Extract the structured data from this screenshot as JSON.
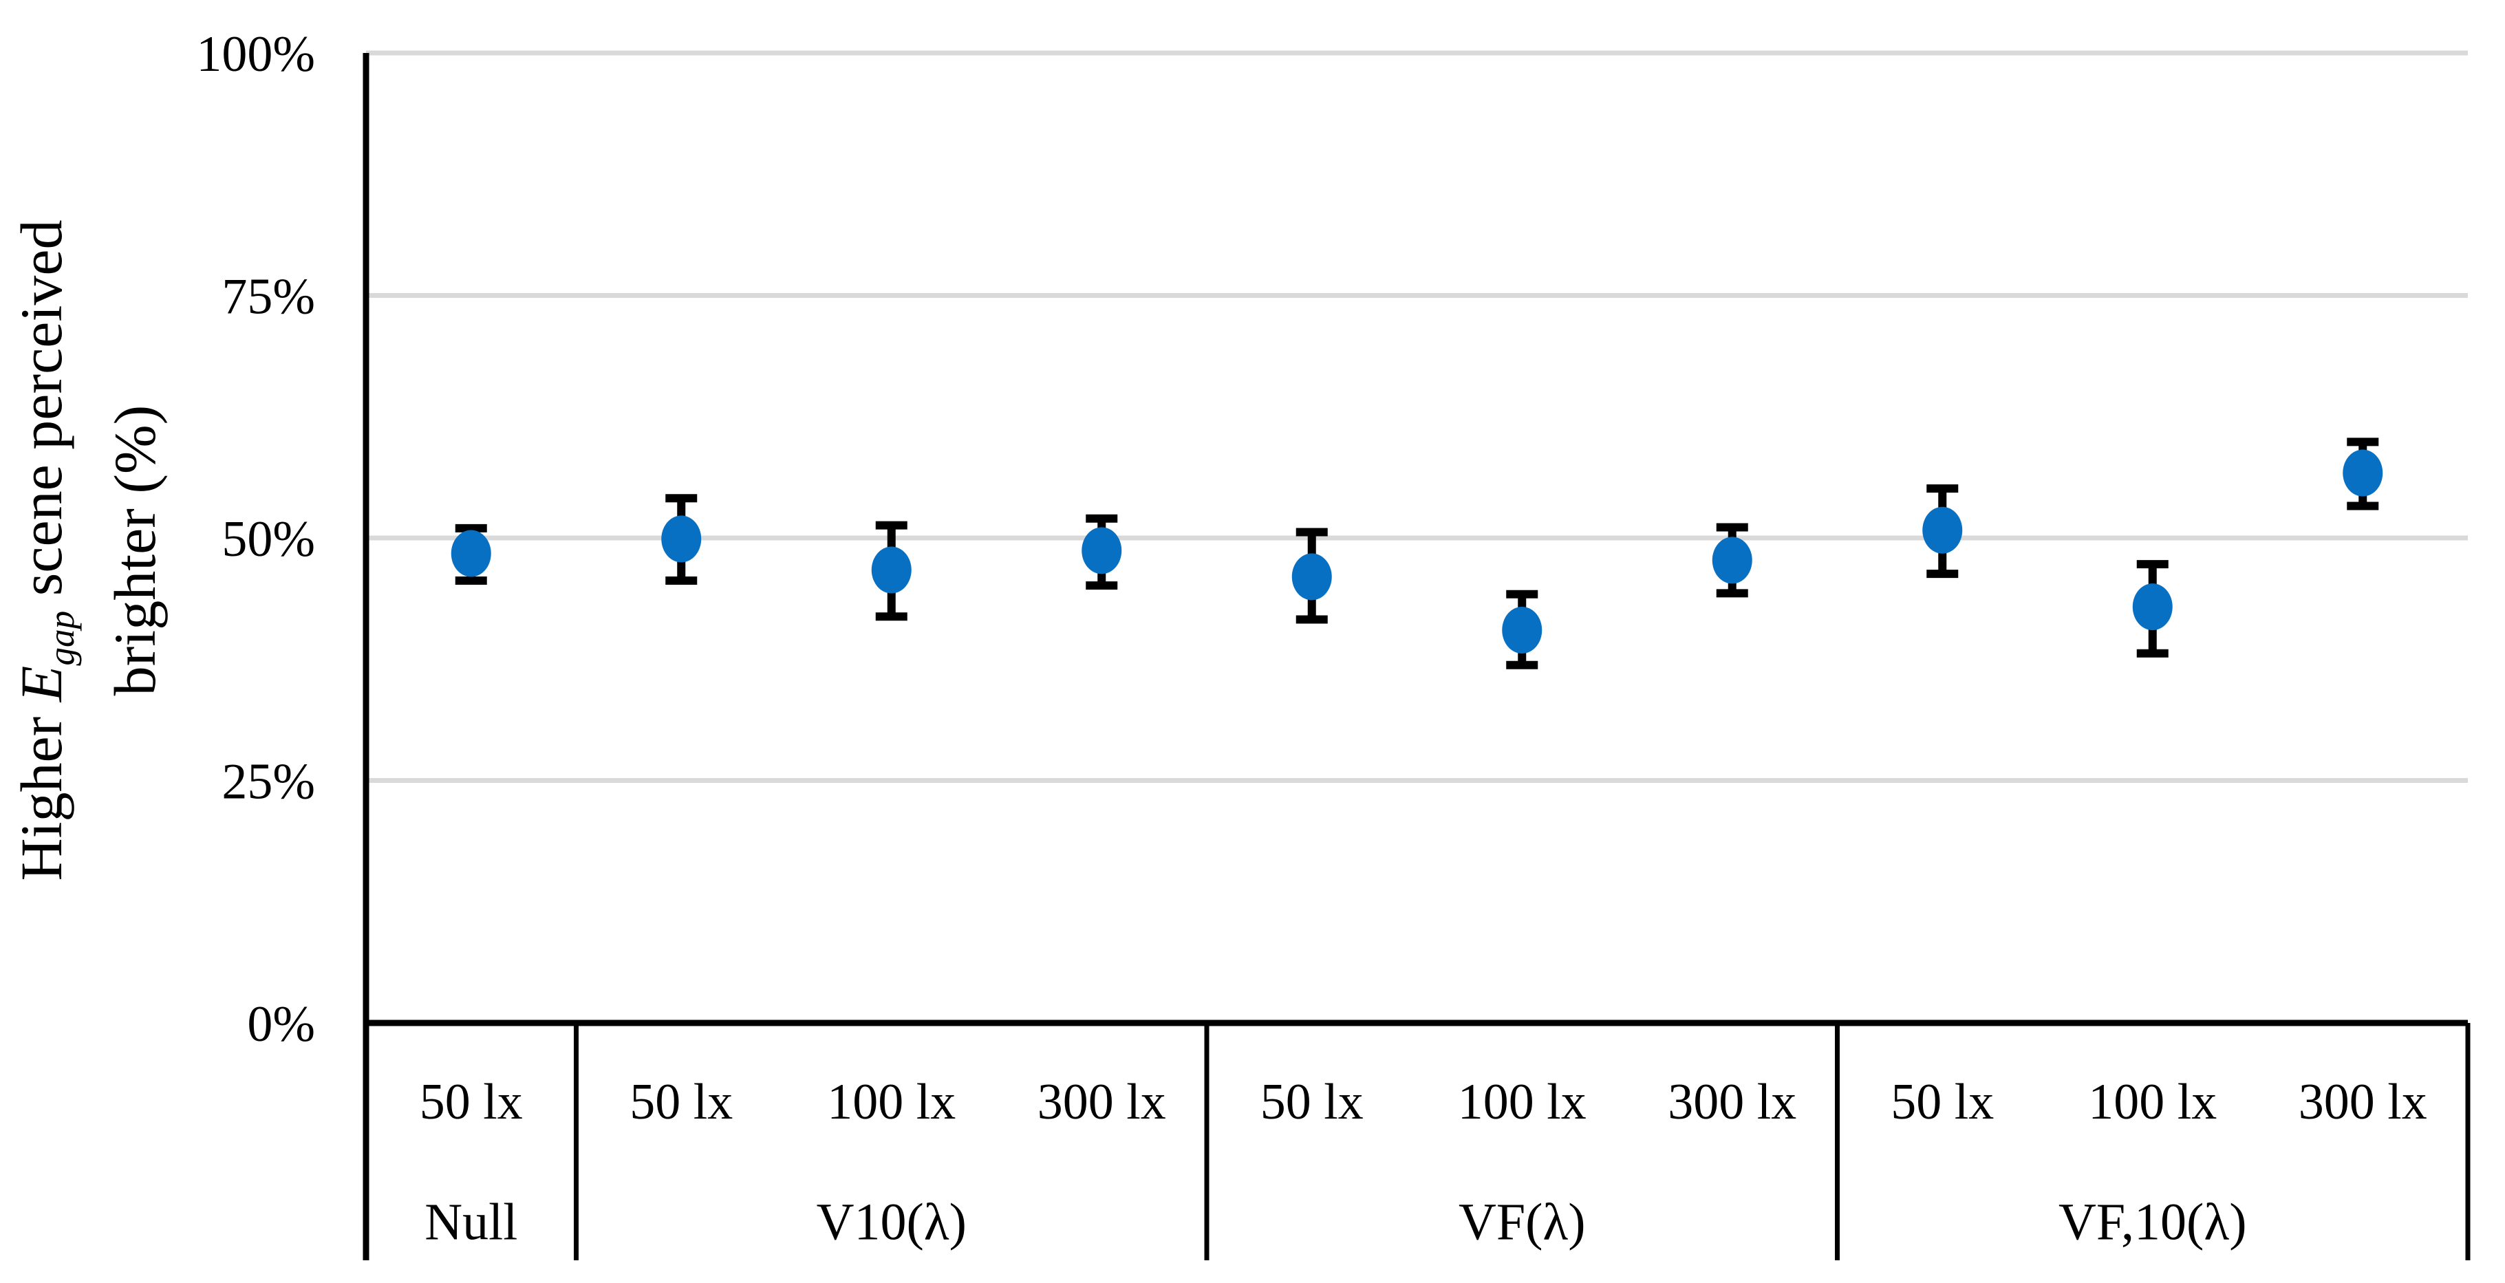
{
  "figure": {
    "background": "#ffffff",
    "y_axis_title": {
      "prefix": "Higher ",
      "symbol": "E",
      "subscript": "gap",
      "suffix": " scene perceived",
      "line2": "brighter (%)"
    }
  },
  "colors": {
    "point": "#0870C3",
    "error_bar": "#000000",
    "grid": "#D9D9D9",
    "axis": "#000000",
    "background": "#FFFFFF"
  },
  "chart_data": {
    "type": "scatter",
    "title": "",
    "xlabel": "",
    "ylabel": "Higher E_gap scene perceived brighter (%)",
    "ylim": [
      0,
      100
    ],
    "grid": true,
    "legend": false,
    "y_ticks": [
      {
        "label": "0%",
        "value": 0
      },
      {
        "label": "25%",
        "value": 25
      },
      {
        "label": "50%",
        "value": 50
      },
      {
        "label": "75%",
        "value": 75
      },
      {
        "label": "100%",
        "value": 100
      }
    ],
    "groups": [
      {
        "label": "Null",
        "points": [
          {
            "condition": "50 lx",
            "value": 48.4,
            "err_plus": 2.6,
            "err_minus": 2.8
          }
        ]
      },
      {
        "label": "V10(λ)",
        "points": [
          {
            "condition": "50 lx",
            "value": 49.9,
            "err_plus": 4.2,
            "err_minus": 4.3
          },
          {
            "condition": "100 lx",
            "value": 46.7,
            "err_plus": 4.6,
            "err_minus": 4.8
          },
          {
            "condition": "300 lx",
            "value": 48.7,
            "err_plus": 3.3,
            "err_minus": 3.6
          }
        ]
      },
      {
        "label": "VF(λ)",
        "points": [
          {
            "condition": "50 lx",
            "value": 46.0,
            "err_plus": 4.6,
            "err_minus": 4.4
          },
          {
            "condition": "100 lx",
            "value": 40.5,
            "err_plus": 3.7,
            "err_minus": 3.6
          },
          {
            "condition": "300 lx",
            "value": 47.7,
            "err_plus": 3.4,
            "err_minus": 3.4
          }
        ]
      },
      {
        "label": "VF,10(λ)",
        "points": [
          {
            "condition": "50 lx",
            "value": 50.8,
            "err_plus": 4.3,
            "err_minus": 4.5
          },
          {
            "condition": "100 lx",
            "value": 42.9,
            "err_plus": 4.4,
            "err_minus": 4.8
          },
          {
            "condition": "300 lx",
            "value": 56.7,
            "err_plus": 3.2,
            "err_minus": 3.4
          }
        ]
      }
    ]
  }
}
